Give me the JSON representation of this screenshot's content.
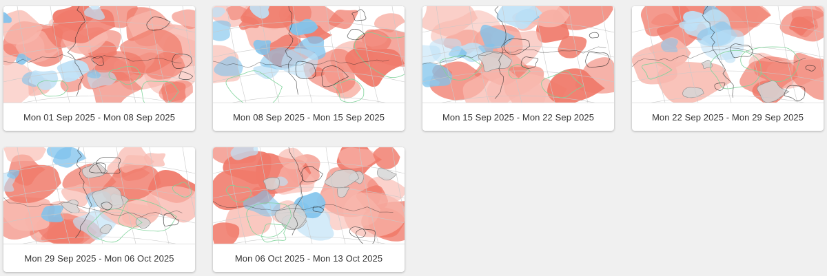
{
  "cards": [
    {
      "label": "Mon 01 Sep 2025 - Mon 08 Sep 2025",
      "warm": 0.85,
      "cold": 0.25,
      "grey": 0.0
    },
    {
      "label": "Mon 08 Sep 2025 - Mon 15 Sep 2025",
      "warm": 0.65,
      "cold": 0.35,
      "grey": 0.0
    },
    {
      "label": "Mon 15 Sep 2025 - Mon 22 Sep 2025",
      "warm": 0.5,
      "cold": 0.45,
      "grey": 0.05
    },
    {
      "label": "Mon 22 Sep 2025 - Mon 29 Sep 2025",
      "warm": 0.55,
      "cold": 0.3,
      "grey": 0.15
    },
    {
      "label": "Mon 29 Sep 2025 - Mon 06 Oct 2025",
      "warm": 0.5,
      "cold": 0.2,
      "grey": 0.35
    },
    {
      "label": "Mon 06 Oct 2025 - Mon 13 Oct 2025",
      "warm": 0.5,
      "cold": 0.15,
      "grey": 0.4
    }
  ],
  "colors": {
    "page_background": "#f0f0f0",
    "warm_anomaly": "#f07a6a",
    "warm_anomaly_light": "#f8b8ae",
    "cold_anomaly": "#7fc3ec",
    "cold_anomaly_light": "#bfe1f6",
    "neutral_grey": "#d6d6d6",
    "contour_line": "#222222",
    "green_line": "#7fd39a",
    "caption_text": "#333333"
  }
}
